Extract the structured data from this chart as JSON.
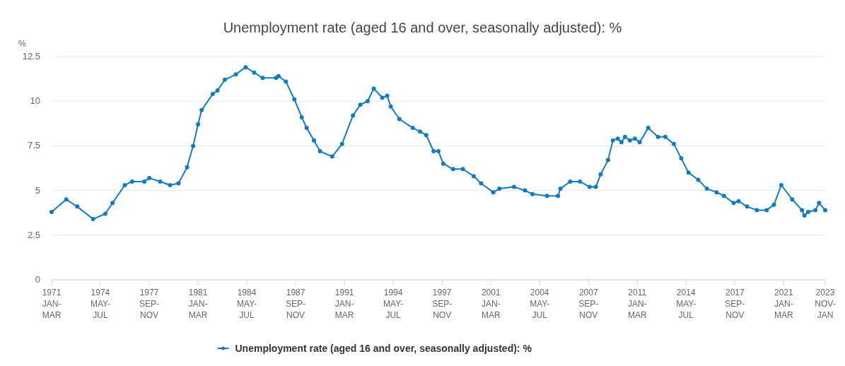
{
  "chart_data": {
    "type": "line",
    "title": "Unemployment rate (aged 16 and over, seasonally adjusted): %",
    "ylabel": "%",
    "x": [
      "1971-01",
      "1972-01",
      "1972-10",
      "1973-11",
      "1974-09",
      "1975-03",
      "1976-01",
      "1976-07",
      "1977-05",
      "1977-09",
      "1978-06",
      "1979-02",
      "1979-09",
      "1980-04",
      "1980-09",
      "1981-01",
      "1981-04",
      "1982-01",
      "1982-05",
      "1982-11",
      "1983-08",
      "1984-04",
      "1984-11",
      "1985-06",
      "1986-05",
      "1986-07",
      "1987-01",
      "1987-08",
      "1988-02",
      "1988-06",
      "1988-12",
      "1989-05",
      "1990-03",
      "1990-11",
      "1991-08",
      "1992-02",
      "1992-08",
      "1993-01",
      "1993-08",
      "1993-12",
      "1994-03",
      "1994-10",
      "1995-09",
      "1996-03",
      "1996-08",
      "1997-02",
      "1997-06",
      "1997-10",
      "1998-06",
      "1999-02",
      "1999-11",
      "2000-05",
      "2001-03",
      "2001-08",
      "2002-08",
      "2003-05",
      "2003-11",
      "2004-11",
      "2005-08",
      "2005-10",
      "2006-06",
      "2007-02",
      "2007-10",
      "2008-03",
      "2008-07",
      "2009-01",
      "2009-05",
      "2009-09",
      "2009-12",
      "2010-03",
      "2010-07",
      "2010-11",
      "2011-03",
      "2011-10",
      "2012-06",
      "2012-12",
      "2013-07",
      "2014-01",
      "2014-07",
      "2015-03",
      "2015-10",
      "2016-06",
      "2016-12",
      "2017-08",
      "2017-12",
      "2018-07",
      "2019-03",
      "2019-11",
      "2020-05",
      "2020-11",
      "2021-08",
      "2022-04",
      "2022-06",
      "2022-09",
      "2023-03",
      "2023-06",
      "2023-11"
    ],
    "series": [
      {
        "name": "Unemployment rate (aged 16 and over, seasonally adjusted): %",
        "color": "#0f7cc0",
        "values": [
          3.8,
          4.5,
          4.1,
          3.4,
          3.7,
          4.3,
          5.3,
          5.5,
          5.5,
          5.7,
          5.5,
          5.3,
          5.4,
          6.3,
          7.5,
          8.7,
          9.5,
          10.4,
          10.6,
          11.2,
          11.5,
          11.9,
          11.6,
          11.3,
          11.3,
          11.4,
          11.1,
          10.1,
          9.1,
          8.5,
          7.8,
          7.2,
          6.9,
          7.6,
          9.2,
          9.8,
          10.0,
          10.7,
          10.2,
          10.3,
          9.7,
          9.0,
          8.5,
          8.3,
          8.1,
          7.2,
          7.2,
          6.5,
          6.2,
          6.2,
          5.8,
          5.4,
          4.9,
          5.1,
          5.2,
          5.0,
          4.8,
          4.7,
          4.7,
          5.1,
          5.5,
          5.5,
          5.2,
          5.2,
          5.9,
          6.7,
          7.8,
          7.9,
          7.7,
          8.0,
          7.8,
          7.9,
          7.7,
          8.5,
          8.0,
          8.0,
          7.6,
          6.8,
          6.0,
          5.6,
          5.1,
          4.9,
          4.7,
          4.3,
          4.4,
          4.1,
          3.9,
          3.9,
          4.2,
          5.3,
          4.5,
          3.9,
          3.6,
          3.8,
          3.9,
          4.3,
          3.9
        ]
      }
    ],
    "xlim": [
      "1971-01",
      "2023-11"
    ],
    "xticks": [
      {
        "value": "1971-01",
        "label": "1971 JAN-MAR"
      },
      {
        "value": "1974-05",
        "label": "1974 MAY-JUL"
      },
      {
        "value": "1977-09",
        "label": "1977 SEP-NOV"
      },
      {
        "value": "1981-01",
        "label": "1981 JAN-MAR"
      },
      {
        "value": "1984-05",
        "label": "1984 MAY-JUL"
      },
      {
        "value": "1987-09",
        "label": "1987 SEP-NOV"
      },
      {
        "value": "1991-01",
        "label": "1991 JAN-MAR"
      },
      {
        "value": "1994-05",
        "label": "1994 MAY-JUL"
      },
      {
        "value": "1997-09",
        "label": "1997 SEP-NOV"
      },
      {
        "value": "2001-01",
        "label": "2001 JAN-MAR"
      },
      {
        "value": "2004-05",
        "label": "2004 MAY-JUL"
      },
      {
        "value": "2007-09",
        "label": "2007 SEP-NOV"
      },
      {
        "value": "2011-01",
        "label": "2011 JAN-MAR"
      },
      {
        "value": "2014-05",
        "label": "2014 MAY-JUL"
      },
      {
        "value": "2017-09",
        "label": "2017 SEP-NOV"
      },
      {
        "value": "2021-01",
        "label": "2021 JAN-MAR"
      },
      {
        "value": "2023-11",
        "label": "2023 NOV-JAN"
      }
    ],
    "ylim": [
      0,
      12.5
    ],
    "yticks": [
      0,
      2.5,
      5,
      7.5,
      10,
      12.5
    ],
    "grid": "y",
    "legend": "bottom",
    "marker": "circle",
    "line_style": "solid"
  }
}
